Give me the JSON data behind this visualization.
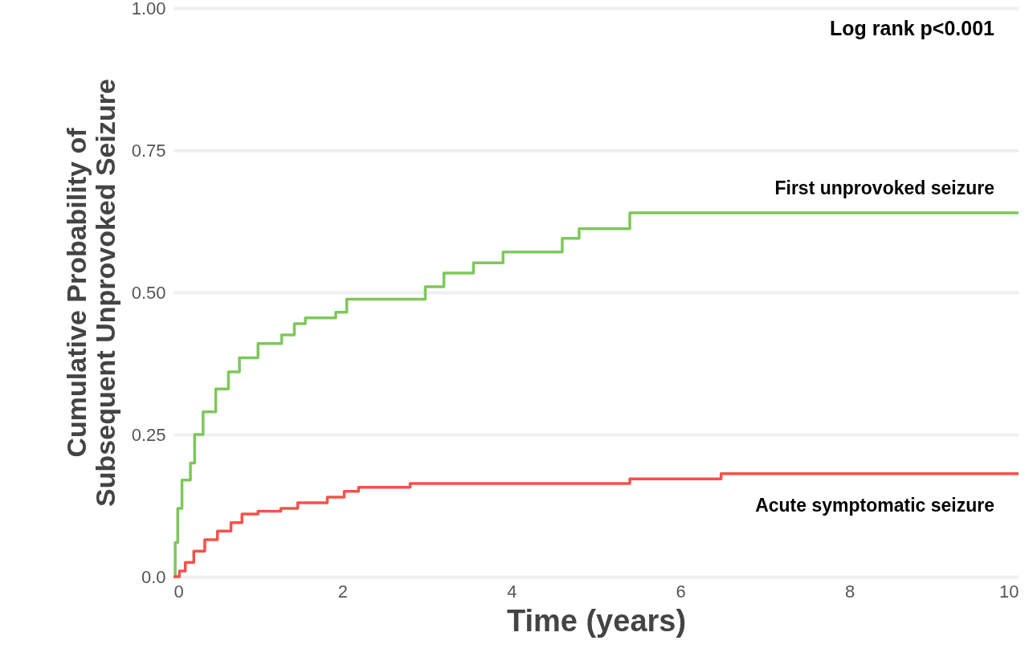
{
  "chart_data": {
    "type": "step",
    "ylabel": "Cumulative Probability of Subsequent Unprovoked Seizure",
    "xlabel": "Time (years)",
    "annotations": [
      "Log rank p<0.001"
    ],
    "xlim": [
      0,
      10
    ],
    "xticks": [
      0,
      2,
      4,
      6,
      8,
      10
    ],
    "ylim": [
      0,
      1
    ],
    "yticks": [
      {
        "value": 0,
        "label": "0.0"
      },
      {
        "value": 0.25,
        "label": "0.25"
      },
      {
        "value": 0.5,
        "label": "0.50"
      },
      {
        "value": 0.75,
        "label": "0.75"
      },
      {
        "value": 1,
        "label": "1.00"
      }
    ],
    "grid": "y",
    "marker": "none",
    "line_style": "solid",
    "series": [
      {
        "name": "First unprovoked seizure",
        "color": "#7dc85a",
        "x": [
          0,
          0.02,
          0.05,
          0.1,
          0.2,
          0.25,
          0.35,
          0.5,
          0.65,
          0.78,
          1.0,
          1.28,
          1.43,
          1.56,
          1.92,
          2.05,
          2.98,
          3.2,
          3.55,
          3.9,
          4.6,
          4.8,
          5.4,
          10
        ],
        "values": [
          0,
          0.06,
          0.12,
          0.17,
          0.2,
          0.25,
          0.29,
          0.33,
          0.36,
          0.385,
          0.41,
          0.425,
          0.445,
          0.455,
          0.465,
          0.488,
          0.51,
          0.534,
          0.552,
          0.571,
          0.595,
          0.612,
          0.64,
          0.64
        ]
      },
      {
        "name": "Acute symptomatic seizure",
        "color": "#f4524a",
        "x": [
          0,
          0.07,
          0.14,
          0.24,
          0.37,
          0.52,
          0.68,
          0.81,
          1.0,
          1.27,
          1.47,
          1.82,
          2.02,
          2.19,
          2.8,
          5.4,
          6.48,
          10
        ],
        "values": [
          0,
          0.01,
          0.025,
          0.045,
          0.065,
          0.08,
          0.095,
          0.11,
          0.115,
          0.12,
          0.13,
          0.14,
          0.15,
          0.157,
          0.164,
          0.172,
          0.181,
          0.181
        ]
      }
    ]
  }
}
